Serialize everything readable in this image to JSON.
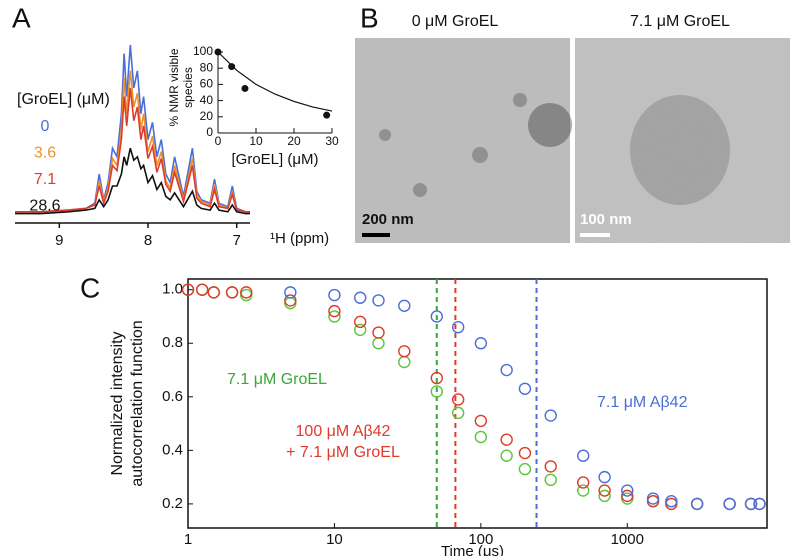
{
  "panel_labels": [
    "A",
    "B",
    "C"
  ],
  "micrographs": [
    {
      "title": "0 μM GroEL",
      "scale_bar": "200 nm"
    },
    {
      "title": "7.1 μM GroEL",
      "scale_bar": "100 nm"
    }
  ],
  "chart_data": [
    {
      "type": "line",
      "xlabel": "¹H (ppm)",
      "legend_title": "[GroEL] (μM)",
      "x": [
        9.5,
        9.2,
        8.9,
        8.7,
        8.6,
        8.55,
        8.5,
        8.45,
        8.4,
        8.35,
        8.3,
        8.27,
        8.24,
        8.2,
        8.16,
        8.12,
        8.08,
        8.05,
        8.0,
        7.95,
        7.9,
        7.85,
        7.8,
        7.75,
        7.7,
        7.6,
        7.5,
        7.45,
        7.4,
        7.3,
        7.25,
        7.2,
        7.1,
        7.05,
        7.0,
        6.9,
        6.85
      ],
      "xlim": [
        9.5,
        6.85
      ],
      "xticks": [
        9,
        8,
        7
      ],
      "ylim": [
        0,
        100
      ],
      "series": [
        {
          "name": "0",
          "color": "#4a6fd6",
          "values": [
            3,
            3,
            4,
            5,
            8,
            25,
            10,
            20,
            40,
            35,
            60,
            95,
            70,
            100,
            75,
            85,
            60,
            70,
            45,
            55,
            35,
            45,
            25,
            20,
            35,
            12,
            40,
            15,
            10,
            8,
            22,
            8,
            6,
            18,
            5,
            3,
            3
          ]
        },
        {
          "name": "3.6",
          "color": "#f0902a",
          "values": [
            3,
            3,
            4,
            5,
            7,
            21,
            9,
            17,
            34,
            30,
            51,
            81,
            60,
            85,
            64,
            72,
            51,
            60,
            38,
            47,
            30,
            38,
            21,
            17,
            30,
            10,
            34,
            13,
            9,
            7,
            19,
            7,
            5,
            15,
            4,
            3,
            3
          ]
        },
        {
          "name": "7.1",
          "color": "#e03a2a",
          "values": [
            3,
            3,
            4,
            5,
            7,
            18,
            8,
            15,
            30,
            27,
            45,
            70,
            53,
            75,
            56,
            64,
            45,
            53,
            34,
            41,
            26,
            34,
            19,
            15,
            26,
            9,
            30,
            11,
            8,
            6,
            16,
            6,
            5,
            13,
            4,
            3,
            3
          ]
        },
        {
          "name": "28.6",
          "color": "#111111",
          "values": [
            2,
            2,
            3,
            4,
            5,
            10,
            6,
            10,
            18,
            18,
            25,
            35,
            30,
            40,
            33,
            35,
            28,
            30,
            20,
            24,
            16,
            20,
            12,
            10,
            14,
            6,
            15,
            7,
            5,
            4,
            8,
            4,
            3,
            7,
            3,
            2,
            2
          ]
        }
      ]
    },
    {
      "type": "scatter",
      "xlabel": "[GroEL] (μM)",
      "ylabel": [
        "% NMR visible",
        "species"
      ],
      "x": [
        0,
        3.6,
        7.1,
        28.6
      ],
      "values": [
        100,
        82,
        55,
        22
      ],
      "color": "#111111",
      "fit_x": [
        0,
        5,
        10,
        15,
        20,
        25,
        30
      ],
      "fit_values": [
        100,
        77,
        60,
        48,
        39,
        32,
        27
      ],
      "xlim": [
        0,
        30
      ],
      "xticks": [
        0,
        10,
        20,
        30
      ],
      "ylim": [
        0,
        100
      ],
      "yticks": [
        0,
        20,
        40,
        60,
        80,
        100
      ]
    },
    {
      "type": "scatter",
      "log_x": true,
      "xlabel": "Time (μs)",
      "ylabel": [
        "Normalized intensity",
        "autocorrelation function"
      ],
      "x": [
        1,
        1.25,
        1.5,
        2,
        2.5,
        5,
        10,
        15,
        20,
        30,
        50,
        70,
        100,
        150,
        200,
        300,
        500,
        700,
        1000,
        1500,
        2000,
        3000,
        5000,
        7000,
        8000
      ],
      "xlim": [
        1,
        9000
      ],
      "xticks": [
        1,
        10,
        100,
        1000
      ],
      "ylim": [
        0.11,
        1.04
      ],
      "yticks": [
        0.2,
        0.4,
        0.6,
        0.8,
        {
          "value": 1,
          "label": "1.0"
        }
      ],
      "series": [
        {
          "color": "#5cc43a",
          "values": [
            1,
            1,
            0.99,
            0.99,
            0.98,
            0.95,
            0.9,
            0.85,
            0.8,
            0.73,
            0.62,
            0.54,
            0.45,
            0.38,
            0.33,
            0.29,
            0.25,
            0.23,
            0.22,
            0.21,
            0.2,
            0.2,
            0.2,
            0.2,
            0.2
          ]
        },
        {
          "color": "#e03a2a",
          "values": [
            1,
            1,
            0.99,
            0.99,
            0.99,
            0.96,
            0.92,
            0.88,
            0.84,
            0.77,
            0.67,
            0.59,
            0.51,
            0.44,
            0.39,
            0.34,
            0.28,
            0.25,
            0.23,
            0.21,
            0.2,
            0.2,
            0.2,
            0.2,
            0.2
          ]
        },
        {
          "color": "#4a6fd6",
          "values": [
            null,
            null,
            null,
            null,
            null,
            0.99,
            0.98,
            0.97,
            0.96,
            0.94,
            0.9,
            0.86,
            0.8,
            0.7,
            0.63,
            0.53,
            0.38,
            0.3,
            0.25,
            0.22,
            0.21,
            0.2,
            0.2,
            0.2,
            0.2
          ]
        }
      ],
      "vlines": [
        {
          "x": 50,
          "color": "#3aa53a"
        },
        {
          "x": 67,
          "color": "#e03a2a"
        },
        {
          "x": 240,
          "color": "#4a6fd6"
        }
      ],
      "annotations": [
        {
          "text": "7.1 μM GroEL",
          "color": "#3aa53a"
        },
        {
          "text": "100 μM Aβ42",
          "color": "#e03a2a"
        },
        {
          "text": "+ 7.1 μM GroEL",
          "color": "#e03a2a"
        },
        {
          "text": "7.1 μM Aβ42",
          "color": "#4a6fd6"
        }
      ]
    }
  ]
}
